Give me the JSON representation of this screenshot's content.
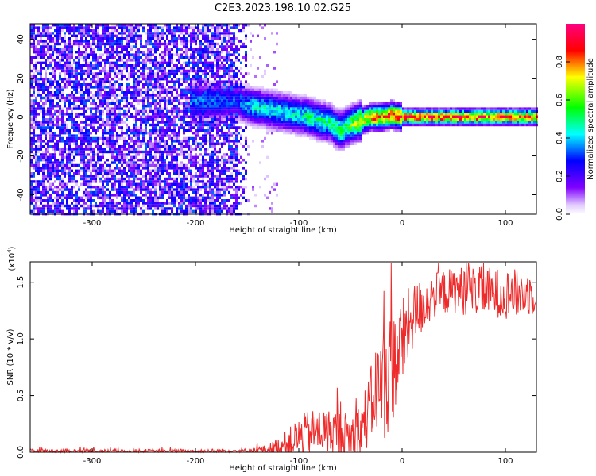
{
  "chart_data": [
    {
      "type": "heatmap",
      "title": "C2E3.2023.198.10.02.G25",
      "xlabel": "Height of straight line (km)",
      "ylabel": "Frequency (Hz)",
      "xlim": [
        -360,
        130
      ],
      "ylim": [
        -50,
        48
      ],
      "x_ticks": [
        -300,
        -200,
        -100,
        0,
        100
      ],
      "y_ticks": [
        -40,
        -20,
        0,
        20,
        40
      ],
      "colorbar": {
        "label": "Normalized spectral amplitude",
        "range": [
          0,
          1
        ],
        "ticks": [
          0.0,
          0.2,
          0.4,
          0.6,
          0.8
        ],
        "colormap": [
          "#ffffff",
          "#8000ff",
          "#0000ff",
          "#00ffff",
          "#00ff00",
          "#ffff00",
          "#ff0000",
          "#ff0080"
        ]
      },
      "ridge": {
        "x": [
          -200,
          -180,
          -160,
          -150,
          -140,
          -120,
          -100,
          -90,
          -80,
          -70,
          -60,
          -50,
          -40,
          -30,
          -20,
          -10,
          0,
          20,
          40,
          60,
          80,
          100,
          130
        ],
        "frequency": [
          8,
          8,
          8,
          6,
          5,
          3,
          1,
          0,
          -2,
          -3,
          -7,
          -4,
          -2,
          0,
          0,
          1,
          0,
          0,
          0,
          0,
          0,
          0,
          0
        ],
        "amplitude": [
          0.35,
          0.35,
          0.3,
          0.4,
          0.45,
          0.45,
          0.45,
          0.5,
          0.5,
          0.5,
          0.55,
          0.6,
          0.7,
          0.8,
          0.85,
          0.85,
          0.9,
          0.9,
          0.9,
          0.9,
          0.9,
          0.88,
          0.85
        ]
      },
      "noise_region": {
        "x_min": -360,
        "x_max": -150,
        "amplitude_max": 0.3
      }
    },
    {
      "type": "line",
      "title": "",
      "xlabel": "Height of straight line (km)",
      "ylabel": "SNR (10 * v/v)",
      "y_multiplier": "(x10",
      "y_multiplier_exp": "4",
      "y_multiplier_close": ")",
      "xlim": [
        -360,
        130
      ],
      "ylim": [
        0,
        1.68
      ],
      "x_ticks": [
        -300,
        -200,
        -100,
        0,
        100
      ],
      "y_ticks": [
        0.0,
        0.5,
        1.0,
        1.5
      ],
      "y_tick_labels": [
        "0.0",
        "0.5",
        "1.0",
        "1.5"
      ],
      "series": [
        {
          "name": "SNR",
          "color": "#ee2a2a",
          "x": [
            -360,
            -300,
            -250,
            -200,
            -150,
            -130,
            -120,
            -110,
            -100,
            -90,
            -80,
            -70,
            -60,
            -50,
            -40,
            -30,
            -25,
            -20,
            -15,
            -10,
            -5,
            0,
            5,
            10,
            20,
            30,
            40,
            50,
            60,
            70,
            80,
            90,
            100,
            110,
            120,
            130
          ],
          "mean": [
            0.01,
            0.01,
            0.01,
            0.01,
            0.015,
            0.03,
            0.06,
            0.1,
            0.15,
            0.19,
            0.21,
            0.2,
            0.19,
            0.17,
            0.22,
            0.45,
            0.6,
            0.65,
            0.7,
            0.78,
            0.88,
            1.0,
            1.12,
            1.22,
            1.32,
            1.4,
            1.43,
            1.45,
            1.45,
            1.45,
            1.44,
            1.43,
            1.42,
            1.42,
            1.42,
            1.43
          ],
          "spread": [
            0.02,
            0.02,
            0.02,
            0.02,
            0.02,
            0.04,
            0.08,
            0.12,
            0.18,
            0.2,
            0.2,
            0.2,
            0.2,
            0.2,
            0.25,
            0.35,
            0.4,
            0.5,
            0.55,
            0.5,
            0.45,
            0.4,
            0.35,
            0.3,
            0.25,
            0.2,
            0.2,
            0.2,
            0.22,
            0.22,
            0.22,
            0.22,
            0.22,
            0.22,
            0.2,
            0.2
          ]
        }
      ]
    }
  ]
}
